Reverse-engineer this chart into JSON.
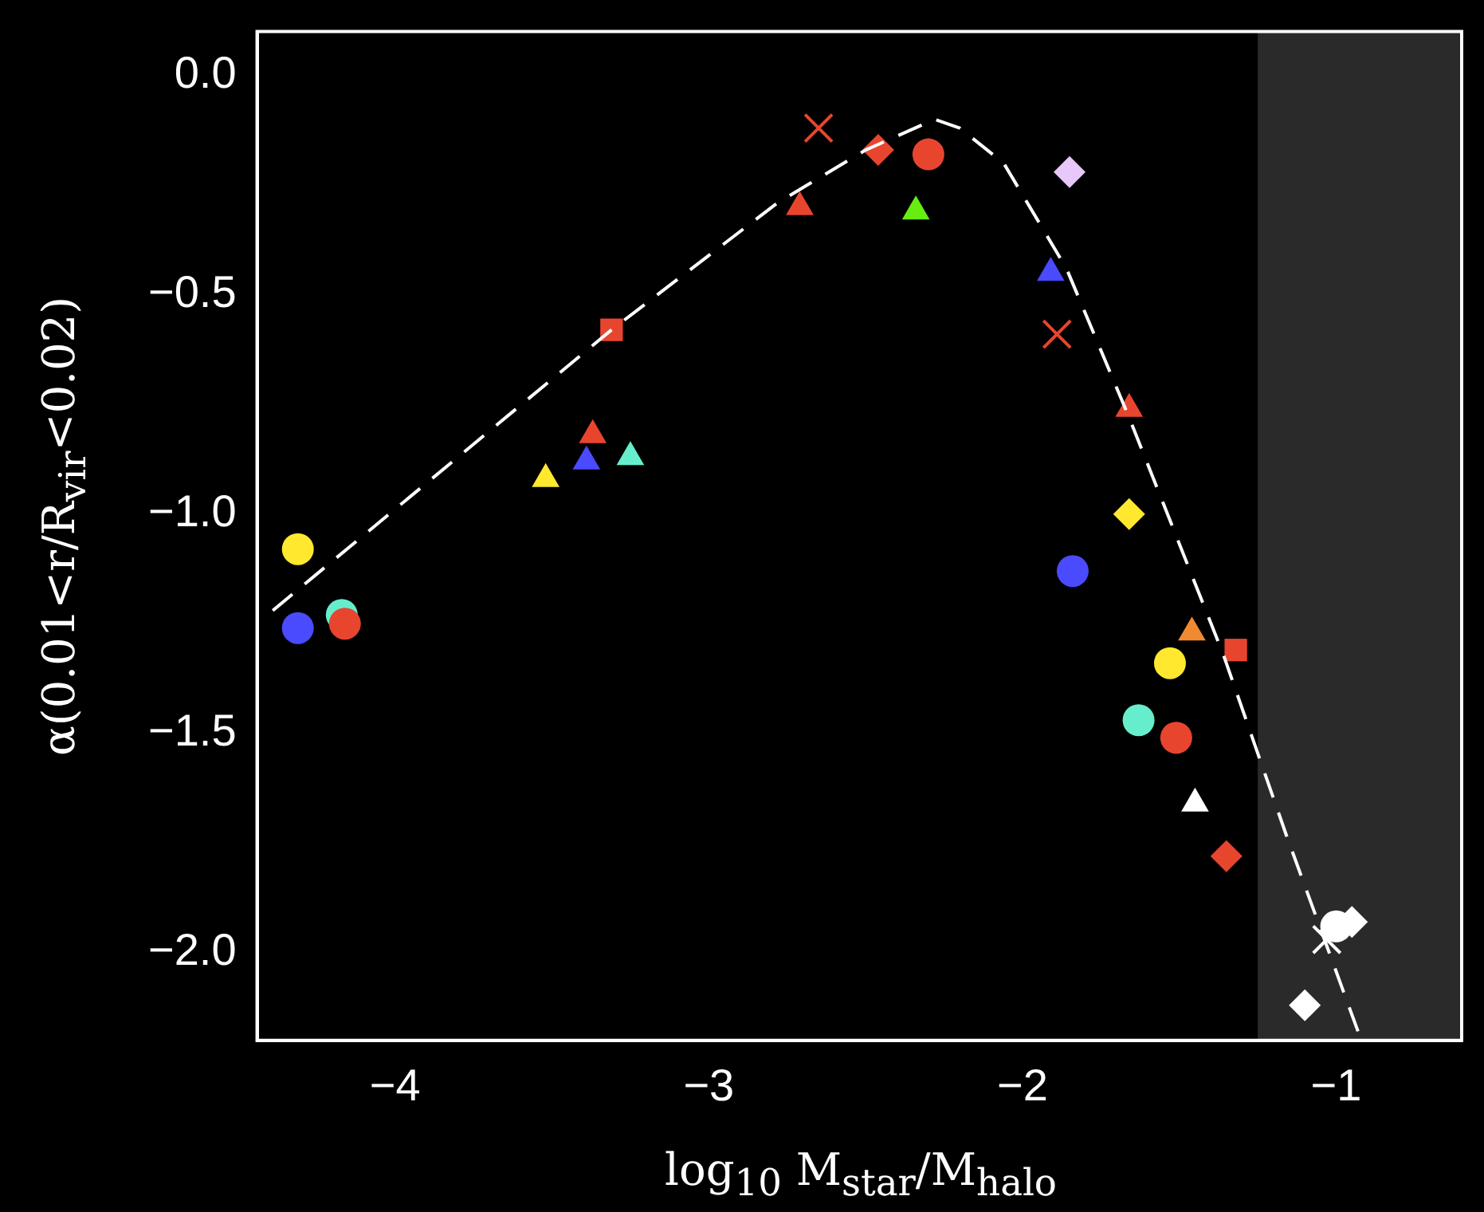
{
  "chart_data": {
    "type": "scatter",
    "xlabel": "log$_{10}$ M$_{star}$/M$_{halo}$",
    "ylabel": "α(0.01<r/R$_{vir}$<0.02)",
    "xlim": [
      -4.44,
      -0.6
    ],
    "ylim": [
      -2.2,
      0.1
    ],
    "xticks": [
      {
        "value": -4,
        "label": "−4"
      },
      {
        "value": -3,
        "label": "−3"
      },
      {
        "value": -2,
        "label": "−2"
      },
      {
        "value": -1,
        "label": "−1"
      }
    ],
    "yticks": [
      {
        "value": 0,
        "label": "0.0"
      },
      {
        "value": -0.5,
        "label": "−0.5"
      },
      {
        "value": -1,
        "label": "−1.0"
      },
      {
        "value": -1.5,
        "label": "−1.5"
      },
      {
        "value": -2,
        "label": "−2.0"
      }
    ],
    "grid": false,
    "legend": false,
    "bands": [
      {
        "axis": "x",
        "from": -1.25,
        "to": -0.6,
        "color": "#2a2a2a"
      }
    ],
    "series": [
      {
        "type": "line",
        "color": "#ffffff",
        "line_style": "dashed",
        "marker": "none",
        "x": [
          -4.39,
          -3.31,
          -2.78,
          -2.5,
          -2.28,
          -2.2,
          -2.06,
          -1.86,
          -1.66,
          -1.36,
          -1.16,
          -0.92
        ],
        "values": [
          -1.22,
          -0.58,
          -0.29,
          -0.17,
          -0.1,
          -0.12,
          -0.2,
          -0.44,
          -0.78,
          -1.32,
          -1.73,
          -2.2
        ]
      },
      {
        "color": "#e8452f",
        "marker": "circle",
        "x": [
          -4.16,
          -2.3,
          -1.51
        ],
        "values": [
          -1.25,
          -0.18,
          -1.51
        ]
      },
      {
        "color": "#4a4aff",
        "marker": "circle",
        "x": [
          -4.31,
          -1.84
        ],
        "values": [
          -1.26,
          -1.13
        ]
      },
      {
        "color": "#ffe82e",
        "marker": "circle",
        "x": [
          -4.31,
          -1.53
        ],
        "values": [
          -1.08,
          -1.34
        ]
      },
      {
        "color": "#66eecc",
        "marker": "circle",
        "x": [
          -4.17,
          -1.63
        ],
        "values": [
          -1.23,
          -1.47
        ]
      },
      {
        "color": "#ffffff",
        "marker": "circle",
        "x": [
          -1.0
        ],
        "values": [
          -1.94
        ]
      },
      {
        "color": "#ffe82e",
        "marker": "triangle",
        "x": [
          -3.52
        ],
        "values": [
          -0.92
        ]
      },
      {
        "color": "#4a4aff",
        "marker": "triangle",
        "x": [
          -3.39,
          -1.91
        ],
        "values": [
          -0.88,
          -0.45
        ]
      },
      {
        "color": "#e8452f",
        "marker": "triangle",
        "x": [
          -3.37,
          -1.66
        ],
        "values": [
          -0.82,
          -0.76
        ]
      },
      {
        "color": "#66eecc",
        "marker": "triangle",
        "x": [
          -3.25
        ],
        "values": [
          -0.87
        ]
      },
      {
        "color": "#66ee11",
        "marker": "triangle",
        "x": [
          -2.34
        ],
        "values": [
          -0.31
        ]
      },
      {
        "color": "#f08a30",
        "marker": "triangle",
        "x": [
          -1.46
        ],
        "values": [
          -1.27
        ]
      },
      {
        "color": "#ffffff",
        "marker": "triangle",
        "x": [
          -1.45
        ],
        "values": [
          -1.66
        ]
      },
      {
        "color": "#e8452f",
        "marker": "square",
        "x": [
          -3.31,
          -1.32
        ],
        "values": [
          -0.58,
          -1.31
        ]
      },
      {
        "color": "#e8452f",
        "marker": "triangle",
        "x": [
          -2.71
        ],
        "values": [
          -0.3
        ]
      },
      {
        "color": "#e8452f",
        "marker": "cross",
        "x": [
          -2.65,
          -1.89
        ],
        "values": [
          -0.12,
          -0.59
        ]
      },
      {
        "color": "#ffffff",
        "marker": "cross",
        "x": [
          -1.03
        ],
        "values": [
          -1.97
        ]
      },
      {
        "color": "#e8452f",
        "marker": "diamond",
        "x": [
          -2.46,
          -1.35
        ],
        "values": [
          -0.17,
          -1.78
        ]
      },
      {
        "color": "#e8c8f8",
        "marker": "diamond",
        "x": [
          -1.85
        ],
        "values": [
          -0.22
        ]
      },
      {
        "color": "#ffe82e",
        "marker": "diamond",
        "x": [
          -1.66
        ],
        "values": [
          -1.0
        ]
      },
      {
        "color": "#ffffff",
        "marker": "diamond",
        "x": [
          -0.95,
          -1.1
        ],
        "values": [
          -1.93,
          -2.12
        ]
      }
    ]
  }
}
